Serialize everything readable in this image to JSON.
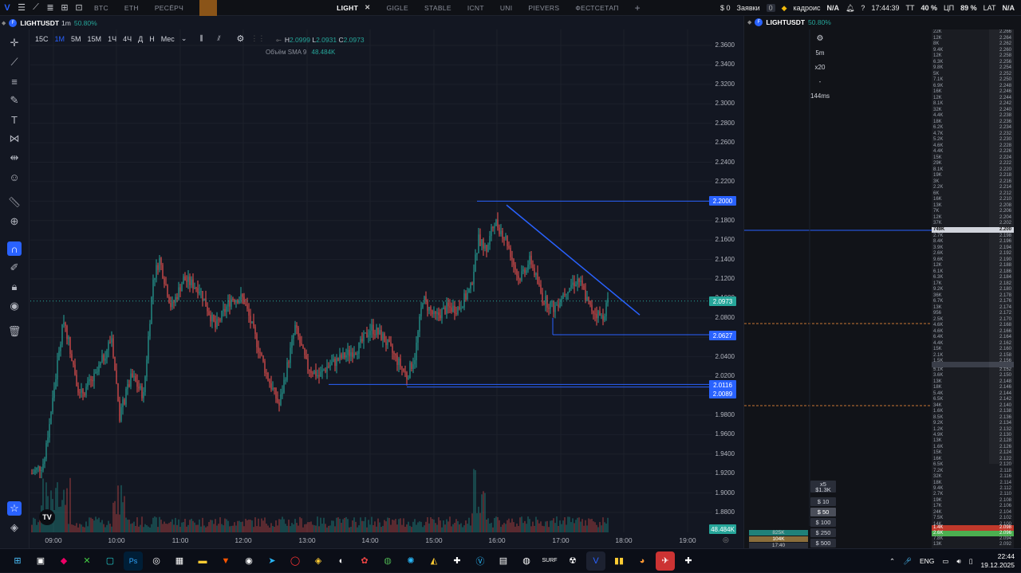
{
  "topbar": {
    "tabs": [
      {
        "label": "BTC",
        "active": false
      },
      {
        "label": "ETH",
        "active": false
      },
      {
        "label": "РЕСЁРЧ",
        "active": false
      },
      {
        "label": "LIGHT",
        "active": true
      },
      {
        "label": "GIGLE",
        "active": false
      },
      {
        "label": "STABLE",
        "active": false
      },
      {
        "label": "ICNT",
        "active": false
      },
      {
        "label": "UNI",
        "active": false
      },
      {
        "label": "PIEVERS",
        "active": false
      },
      {
        "label": "ФЕСТСЕТАП",
        "active": false
      }
    ],
    "add_tab": "+",
    "balance": "$ 0",
    "orders_label": "Заявки",
    "orders_count": "0",
    "kadr_label": "кадроис",
    "kadr_value": "N/A",
    "time": "17:44:39",
    "tt_label": "ТТ",
    "tt_value": "40 %",
    "cpu_label": "ЦП",
    "cpu_value": "89 %",
    "lat_label": "LAT",
    "lat_value": "N/A"
  },
  "symbol": {
    "name": "LIGHTUSDT",
    "interval": "1m",
    "change": "50.80%",
    "badge": "F"
  },
  "right_symbol": {
    "name": "LIGHTUSDT",
    "change": "50.80%",
    "badge": "F"
  },
  "intervals": [
    "15С",
    "1М",
    "5М",
    "15М",
    "1Ч",
    "4Ч",
    "Д",
    "Н",
    "Мес"
  ],
  "active_interval": "1М",
  "ohlc": {
    "h_label": "H",
    "h": "2.0999",
    "l_label": "L",
    "l": "2.0931",
    "c_label": "C",
    "c": "2.0973"
  },
  "volume_label": "Объём",
  "volume_sma": "SMA 9",
  "volume_value": "48.484K",
  "price_ticks": [
    "2.3600",
    "2.3400",
    "2.3200",
    "2.3000",
    "2.2800",
    "2.2600",
    "2.2400",
    "2.2200",
    "2.2000",
    "2.1800",
    "2.1600",
    "2.1400",
    "2.1200",
    "2.1000",
    "2.0800",
    "2.0600",
    "2.0400",
    "2.0200",
    "2.0000",
    "1.9800",
    "1.9600",
    "1.9400",
    "1.9200",
    "1.9000",
    "1.8800"
  ],
  "price_labels": [
    {
      "value": "2.2000",
      "color": "#2962ff"
    },
    {
      "value": "2.0973",
      "color": "#26a69a"
    },
    {
      "value": "2.0627",
      "color": "#2962ff"
    },
    {
      "value": "2.0116",
      "color": "#2962ff"
    },
    {
      "value": "2.0089",
      "color": "#2962ff"
    },
    {
      "value": "48.484K",
      "color": "#26a69a"
    }
  ],
  "time_ticks": [
    "09:00",
    "10:00",
    "11:00",
    "12:00",
    "13:00",
    "14:00",
    "15:00",
    "16:00",
    "17:00",
    "18:00",
    "19:00"
  ],
  "right_controls": {
    "gear": "⚙",
    "tf": "5m",
    "mult": "x20",
    "dash": "-",
    "latency": "144ms"
  },
  "amount_buttons": [
    "$ 10",
    "$ 50",
    "$ 100",
    "$ 250",
    "$ 500"
  ],
  "amount_active": "$ 50",
  "x5_label": "x5",
  "x5_value": "$1.3K",
  "bottom_stats": [
    "825K",
    "104K",
    "17:40"
  ],
  "orderbook_top": [
    [
      "22K",
      "2.266"
    ],
    [
      "12K",
      "2.264"
    ],
    [
      "8K",
      "2.262"
    ],
    [
      "9.4K",
      "2.260"
    ],
    [
      "12K",
      "2.258"
    ],
    [
      "6.3K",
      "2.256"
    ],
    [
      "9.8K",
      "2.254"
    ],
    [
      "5K",
      "2.252"
    ],
    [
      "7.1K",
      "2.250"
    ],
    [
      "6.9K",
      "2.248"
    ],
    [
      "16K",
      "2.246"
    ],
    [
      "12K",
      "2.244"
    ],
    [
      "8.1K",
      "2.242"
    ],
    [
      "32K",
      "2.240"
    ],
    [
      "4.4K",
      "2.238"
    ],
    [
      "18K",
      "2.236"
    ],
    [
      "6.2K",
      "2.234"
    ],
    [
      "4.7K",
      "2.232"
    ],
    [
      "5.2K",
      "2.230"
    ],
    [
      "4.6K",
      "2.228"
    ],
    [
      "4.4K",
      "2.226"
    ],
    [
      "15K",
      "2.224"
    ],
    [
      "29K",
      "2.222"
    ],
    [
      "8.1K",
      "2.220"
    ],
    [
      "19K",
      "2.218"
    ],
    [
      "3K",
      "2.216"
    ],
    [
      "2.2K",
      "2.214"
    ],
    [
      "6K",
      "2.212"
    ],
    [
      "16K",
      "2.210"
    ],
    [
      "13K",
      "2.208"
    ],
    [
      "7K",
      "2.206"
    ],
    [
      "12K",
      "2.204"
    ],
    [
      "37K",
      "2.202"
    ]
  ],
  "orderbook_mid": [
    [
      "749K",
      "2.200"
    ],
    [
      "2.7K",
      "2.198"
    ],
    [
      "8.4K",
      "2.196"
    ],
    [
      "3.9K",
      "2.194"
    ],
    [
      "2.6K",
      "2.192"
    ],
    [
      "9.6K",
      "2.190"
    ],
    [
      "12K",
      "2.188"
    ],
    [
      "6.1K",
      "2.186"
    ],
    [
      "6.3K",
      "2.184"
    ],
    [
      "17K",
      "2.182"
    ],
    [
      "9.2K",
      "2.180"
    ],
    [
      "36K",
      "2.178"
    ],
    [
      "6.7K",
      "2.176"
    ],
    [
      "13K",
      "2.174"
    ],
    [
      "956",
      "2.172"
    ],
    [
      "2.5K",
      "2.170"
    ],
    [
      "4.6K",
      "2.168"
    ],
    [
      "4.6K",
      "2.166"
    ],
    [
      "6.4K",
      "2.164"
    ],
    [
      "4.4K",
      "2.162"
    ],
    [
      "15K",
      "2.160"
    ],
    [
      "2.1K",
      "2.158"
    ],
    [
      "1.5K",
      "2.156"
    ],
    [
      "5.4K",
      "2.154"
    ]
  ],
  "orderbook_bottom": [
    [
      "5.1K",
      "2.152"
    ],
    [
      "3.6K",
      "2.150"
    ],
    [
      "13K",
      "2.148"
    ],
    [
      "18K",
      "2.146"
    ],
    [
      "5.4K",
      "2.144"
    ],
    [
      "6.5K",
      "2.142"
    ],
    [
      "34K",
      "2.140"
    ],
    [
      "1.6K",
      "2.138"
    ],
    [
      "8.5K",
      "2.136"
    ],
    [
      "9.2K",
      "2.134"
    ],
    [
      "1.2K",
      "2.132"
    ],
    [
      "4.9K",
      "2.130"
    ],
    [
      "13K",
      "2.128"
    ],
    [
      "1.6K",
      "2.126"
    ],
    [
      "15K",
      "2.124"
    ],
    [
      "16K",
      "2.122"
    ],
    [
      "6.5K",
      "2.120"
    ],
    [
      "7.2K",
      "2.118"
    ],
    [
      "32K",
      "2.116"
    ],
    [
      "18K",
      "2.114"
    ],
    [
      "9.4K",
      "2.112"
    ],
    [
      "2.7K",
      "2.110"
    ],
    [
      "19K",
      "2.108"
    ],
    [
      "17K",
      "2.106"
    ],
    [
      "24K",
      "2.104"
    ],
    [
      "7.5K",
      "2.102"
    ],
    [
      "14K",
      "2.100"
    ]
  ],
  "orderbook_last": [
    [
      "1.4K",
      "2.098"
    ],
    [
      "2.6K",
      "2.096"
    ],
    [
      "7.8K",
      "2.094"
    ],
    [
      "13K",
      "2.092"
    ]
  ],
  "taskbar": {
    "lang": "ENG",
    "time": "22:44",
    "date": "19.12.2025"
  },
  "colors": {
    "up": "#26a69a",
    "down": "#ef5350",
    "line": "#2962ff"
  }
}
